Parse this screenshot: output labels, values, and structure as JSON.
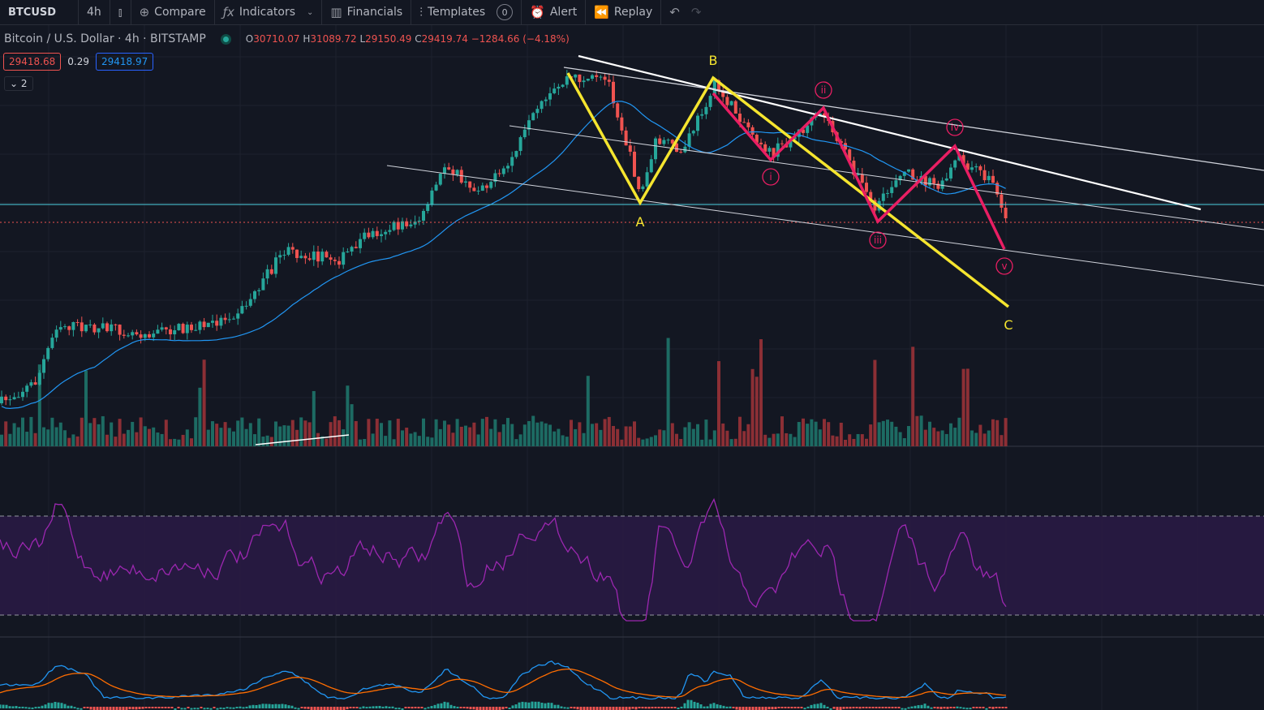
{
  "toolbar": {
    "symbol": "BTCUSD",
    "interval": "4h",
    "compare": "Compare",
    "indicators": "Indicators",
    "financials": "Financials",
    "templates": "Templates",
    "templates_count": "0",
    "alert": "Alert",
    "replay": "Replay"
  },
  "legend": {
    "title": "Bitcoin / U.S. Dollar · 4h · BITSTAMP",
    "o_label": "O",
    "o": "30710.07",
    "h_label": "H",
    "h": "31089.72",
    "l_label": "L",
    "l": "29150.49",
    "c_label": "C",
    "c": "29419.74",
    "change": "−1284.66 (−4.18%)"
  },
  "quote": {
    "bid": "29418.68",
    "spread": "0.29",
    "ask": "29418.97"
  },
  "collapse": {
    "count": "2"
  },
  "annotations": {
    "abc": [
      "A",
      "B",
      "C"
    ],
    "waves": [
      "i",
      "ii",
      "iii",
      "iv",
      "v"
    ]
  },
  "colors": {
    "bg": "#131722",
    "up": "#26a69a",
    "down": "#ef5350",
    "yellow": "#f5e52f",
    "pink": "#e91e63",
    "rsi": "#9c27b0",
    "ma": "#2196f3",
    "macd_signal": "#ff6d00"
  }
}
